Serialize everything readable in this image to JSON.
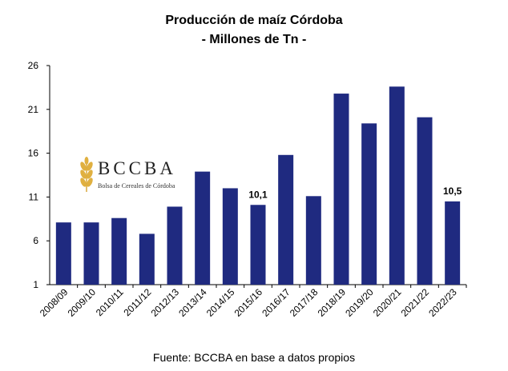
{
  "title": "Producción de maíz Córdoba",
  "subtitle": "- Millones de Tn -",
  "source": "Fuente: BCCBA en base a datos propios",
  "logo": {
    "word": "BCCBA",
    "sub": "Bolsa de Cereales de Córdoba",
    "color": "#e0b040"
  },
  "chart_data": {
    "type": "bar",
    "title": "Producción de maíz Córdoba",
    "subtitle": "- Millones de Tn -",
    "xlabel": "",
    "ylabel": "",
    "ylim": [
      1,
      26
    ],
    "yticks": [
      1,
      6,
      11,
      16,
      21,
      26
    ],
    "grid": false,
    "color": "#1f2a80",
    "categories": [
      "2008/09",
      "2009/10",
      "2010/11",
      "2011/12",
      "2012/13",
      "2013/14",
      "2014/15",
      "2015/16",
      "2016/17",
      "2017/18",
      "2018/19",
      "2019/20",
      "2020/21",
      "2021/22",
      "2022/23"
    ],
    "values": [
      8.1,
      8.1,
      8.6,
      6.8,
      9.9,
      13.9,
      12.0,
      10.1,
      15.8,
      11.1,
      22.8,
      19.4,
      23.6,
      20.1,
      10.5
    ],
    "data_labels": [
      {
        "index": 7,
        "text": "10,1"
      },
      {
        "index": 14,
        "text": "10,5"
      }
    ]
  }
}
